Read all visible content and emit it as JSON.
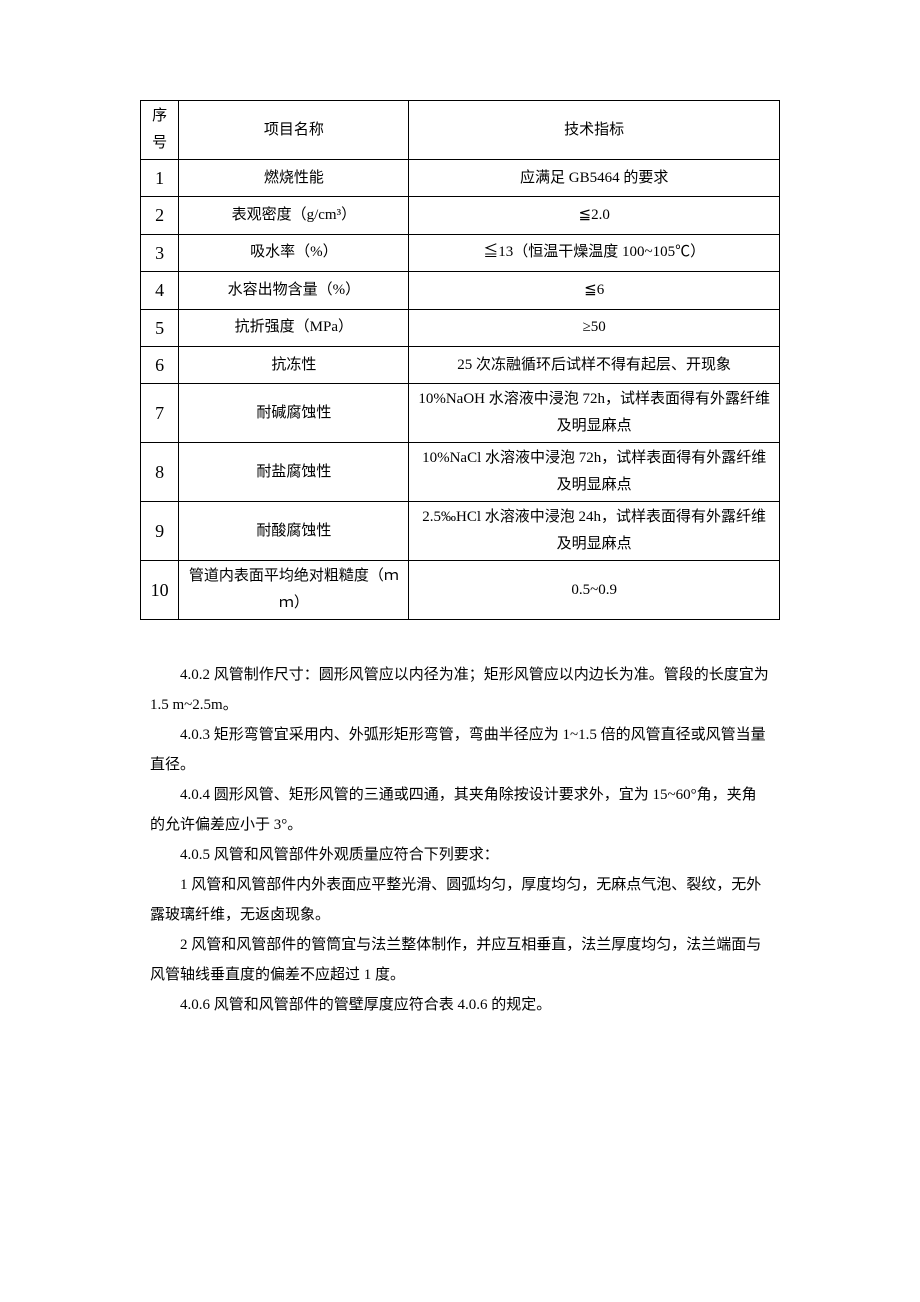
{
  "table": {
    "header": {
      "seq": "序号",
      "name": "项目名称",
      "spec": "技术指标"
    },
    "rows": [
      {
        "seq": "1",
        "name": "燃烧性能",
        "spec": "应满足 GB5464 的要求"
      },
      {
        "seq": "2",
        "name": "表观密度（g/cm³）",
        "spec": "≦2.0"
      },
      {
        "seq": "3",
        "name": "吸水率（%）",
        "spec": "≦13（恒温干燥温度 100~105℃）"
      },
      {
        "seq": "4",
        "name": "水容出物含量（%）",
        "spec": "≦6"
      },
      {
        "seq": "5",
        "name": "抗折强度（MPa）",
        "spec": "≥50"
      },
      {
        "seq": "6",
        "name": "抗冻性",
        "spec": "25 次冻融循环后试样不得有起层、开现象"
      },
      {
        "seq": "7",
        "name": "耐碱腐蚀性",
        "spec": "10%NaOH 水溶液中浸泡 72h，试样表面得有外露纤维及明显麻点"
      },
      {
        "seq": "8",
        "name": "耐盐腐蚀性",
        "spec": "10%NaCl 水溶液中浸泡 72h，试样表面得有外露纤维及明显麻点"
      },
      {
        "seq": "9",
        "name": "耐酸腐蚀性",
        "spec": "2.5‰HCl 水溶液中浸泡 24h，试样表面得有外露纤维及明显麻点"
      },
      {
        "seq": "10",
        "name": "管道内表面平均绝对粗糙度（ｍｍ）",
        "spec": "0.5~0.9"
      }
    ]
  },
  "paragraphs": {
    "p1": "4.0.2 风管制作尺寸：圆形风管应以内径为准；矩形风管应以内边长为准。管段的长度宜为 1.5 m~2.5m。",
    "p2": "4.0.3 矩形弯管宜采用内、外弧形矩形弯管，弯曲半径应为 1~1.5 倍的风管直径或风管当量直径。",
    "p3": "4.0.4 圆形风管、矩形风管的三通或四通，其夹角除按设计要求外，宜为 15~60°角，夹角的允许偏差应小于 3°。",
    "p4": "4.0.5 风管和风管部件外观质量应符合下列要求：",
    "p5": "1 风管和风管部件内外表面应平整光滑、圆弧均匀，厚度均匀，无麻点气泡、裂纹，无外露玻璃纤维，无返卤现象。",
    "p6": "2 风管和风管部件的管筒宜与法兰整体制作，并应互相垂直，法兰厚度均匀，法兰端面与风管轴线垂直度的偏差不应超过 1 度。",
    "p7": "4.0.6 风管和风管部件的管壁厚度应符合表 4.0.6 的规定。"
  }
}
